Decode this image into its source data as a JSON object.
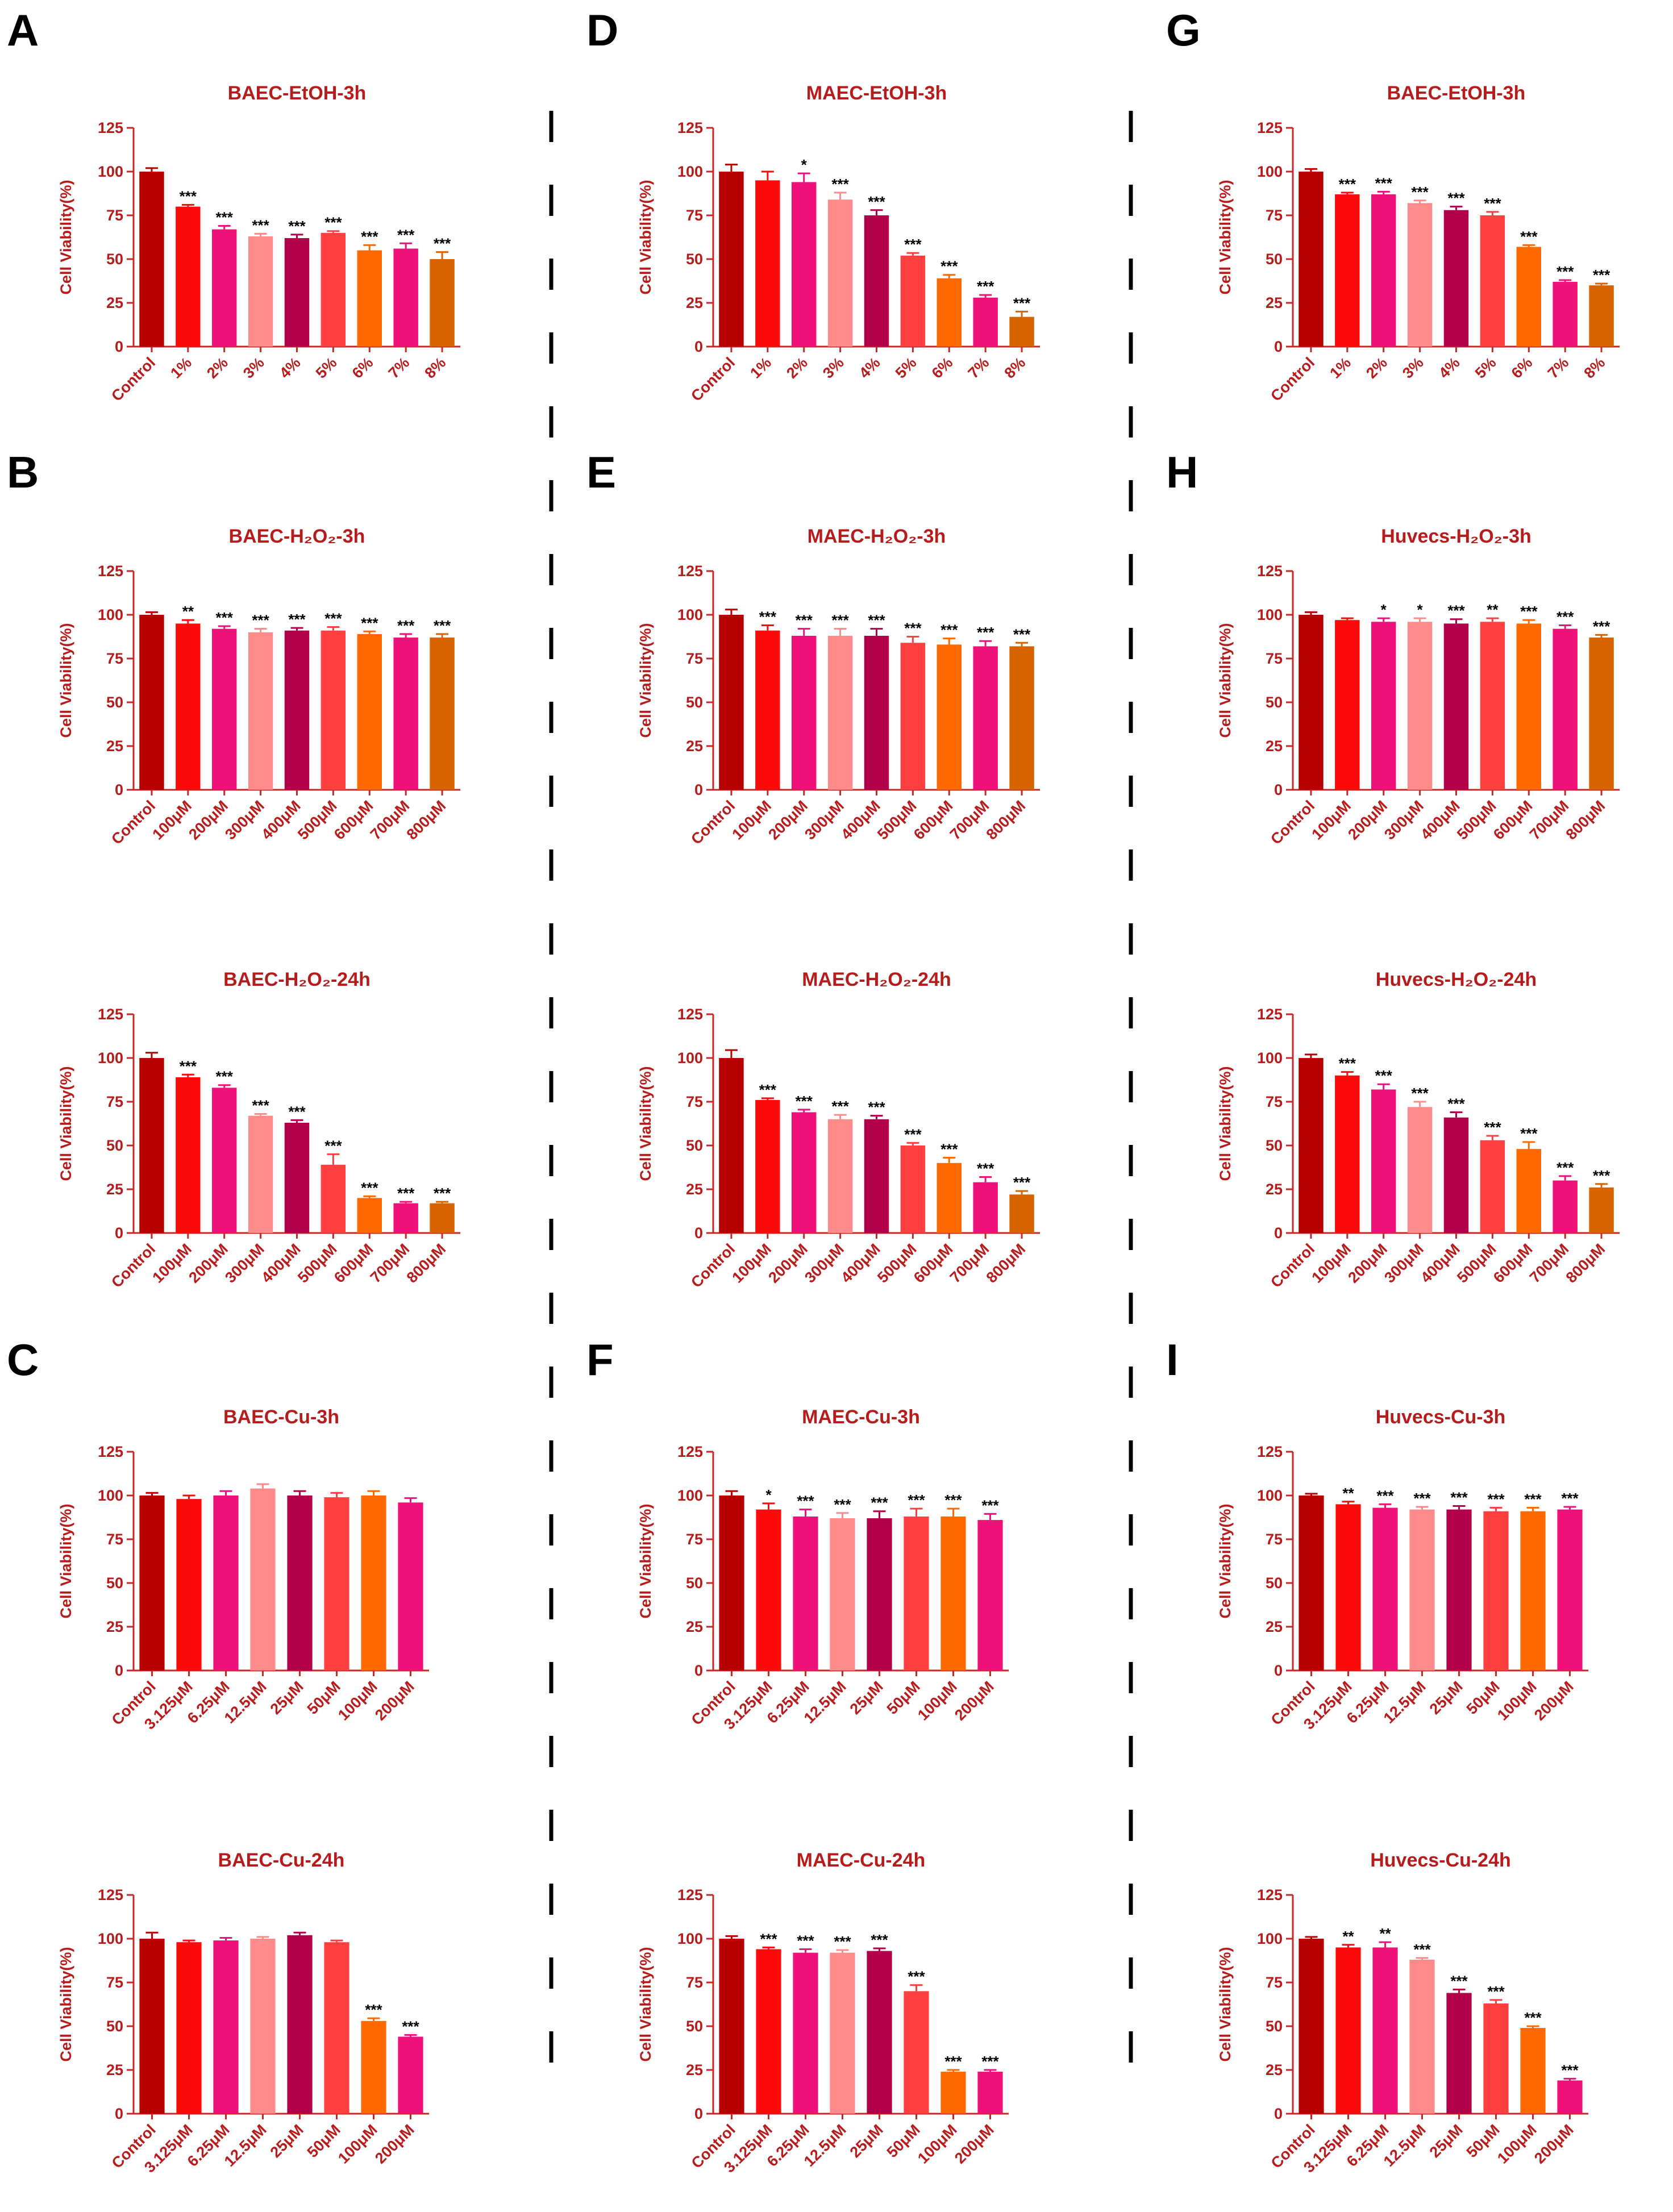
{
  "colors": {
    "text": "#B71C1C",
    "axis": "#C62828",
    "divider": "#000000",
    "bars": [
      "#B80000",
      "#FF0A0A",
      "#F0107A",
      "#FF8A8A",
      "#B3004B",
      "#FF4040",
      "#FF6A00",
      "#F0107A",
      "#D86400"
    ]
  },
  "panel_letters": [
    "A",
    "B",
    "C",
    "D",
    "E",
    "F",
    "G",
    "H",
    "I"
  ],
  "chart_data": [
    {
      "title": "BAEC-EtOH-3h",
      "type": "bar",
      "ylabel": "Cell Viability(%)",
      "ylim": [
        0,
        125
      ],
      "yticks": [
        0,
        25,
        50,
        75,
        100,
        125
      ],
      "categories": [
        "Control",
        "1%",
        "2%",
        "3%",
        "4%",
        "5%",
        "6%",
        "7%",
        "8%"
      ],
      "values": [
        100,
        80,
        67,
        63,
        62,
        65,
        55,
        56,
        50
      ],
      "errors": [
        2,
        1,
        2,
        1.5,
        2,
        1,
        3,
        3,
        4
      ],
      "significance": [
        "",
        "***",
        "***",
        "***",
        "***",
        "***",
        "***",
        "***",
        "***"
      ]
    },
    {
      "title": "BAEC-H₂O₂-3h",
      "type": "bar",
      "ylabel": "Cell Viability(%)",
      "ylim": [
        0,
        125
      ],
      "yticks": [
        0,
        25,
        50,
        75,
        100,
        125
      ],
      "categories": [
        "Control",
        "100μM",
        "200μM",
        "300μM",
        "400μM",
        "500μM",
        "600μM",
        "700μM",
        "800μM"
      ],
      "values": [
        100,
        95,
        92,
        90,
        91,
        91,
        89,
        87,
        87
      ],
      "errors": [
        1.5,
        2,
        1.5,
        2,
        1.5,
        2,
        1.5,
        2,
        2
      ],
      "significance": [
        "",
        "**",
        "***",
        "***",
        "***",
        "***",
        "***",
        "***",
        "***"
      ]
    },
    {
      "title": "BAEC-H₂O₂-24h",
      "type": "bar",
      "ylabel": "Cell Viability(%)",
      "ylim": [
        0,
        125
      ],
      "yticks": [
        0,
        25,
        50,
        75,
        100,
        125
      ],
      "categories": [
        "Control",
        "100μM",
        "200μM",
        "300μM",
        "400μM",
        "500μM",
        "600μM",
        "700μM",
        "800μM"
      ],
      "values": [
        100,
        89,
        83,
        67,
        63,
        39,
        20,
        17,
        17
      ],
      "errors": [
        3,
        1.5,
        1.5,
        1,
        1.5,
        6,
        1,
        0.8,
        0.8
      ],
      "significance": [
        "",
        "***",
        "***",
        "***",
        "***",
        "***",
        "***",
        "***",
        "***"
      ]
    },
    {
      "title": "BAEC-Cu-3h",
      "type": "bar",
      "ylabel": "Cell Viability(%)",
      "ylim": [
        0,
        125
      ],
      "yticks": [
        0,
        25,
        50,
        75,
        100,
        125
      ],
      "categories": [
        "Control",
        "3.125μM",
        "6.25μM",
        "12.5μM",
        "25μM",
        "50μM",
        "100μM",
        "200μM"
      ],
      "values": [
        100,
        98,
        100,
        104,
        100,
        99,
        100,
        96
      ],
      "errors": [
        1.5,
        2,
        2.5,
        2.5,
        2.5,
        2.5,
        2.5,
        2.5
      ],
      "significance": [
        "",
        "",
        "",
        "",
        "",
        "",
        "",
        ""
      ]
    },
    {
      "title": "BAEC-Cu-24h",
      "type": "bar",
      "ylabel": "Cell Viability(%)",
      "ylim": [
        0,
        125
      ],
      "yticks": [
        0,
        25,
        50,
        75,
        100,
        125
      ],
      "categories": [
        "Control",
        "3.125μM",
        "6.25μM",
        "12.5μM",
        "25μM",
        "50μM",
        "100μM",
        "200μM"
      ],
      "values": [
        100,
        98,
        99,
        100,
        102,
        98,
        53,
        44
      ],
      "errors": [
        3.5,
        1,
        1.5,
        1,
        1.5,
        1,
        1.5,
        1
      ],
      "significance": [
        "",
        "",
        "",
        "",
        "",
        "",
        "***",
        "***"
      ]
    },
    {
      "title": "MAEC-EtOH-3h",
      "type": "bar",
      "ylabel": "Cell Viability(%)",
      "ylim": [
        0,
        125
      ],
      "yticks": [
        0,
        25,
        50,
        75,
        100,
        125
      ],
      "categories": [
        "Control",
        "1%",
        "2%",
        "3%",
        "4%",
        "5%",
        "6%",
        "7%",
        "8%"
      ],
      "values": [
        100,
        95,
        94,
        84,
        75,
        52,
        39,
        28,
        17
      ],
      "errors": [
        4,
        5,
        5,
        4,
        3,
        1.5,
        2,
        1.5,
        3
      ],
      "significance": [
        "",
        "",
        "*",
        "***",
        "***",
        "***",
        "***",
        "***",
        "***"
      ]
    },
    {
      "title": "MAEC-H₂O₂-3h",
      "type": "bar",
      "ylabel": "Cell Viability(%)",
      "ylim": [
        0,
        125
      ],
      "yticks": [
        0,
        25,
        50,
        75,
        100,
        125
      ],
      "categories": [
        "Control",
        "100μM",
        "200μM",
        "300μM",
        "400μM",
        "500μM",
        "600μM",
        "700μM",
        "800μM"
      ],
      "values": [
        100,
        91,
        88,
        88,
        88,
        84,
        83,
        82,
        82
      ],
      "errors": [
        3,
        3,
        4,
        4,
        4,
        3.5,
        3.5,
        3,
        2
      ],
      "significance": [
        "",
        "***",
        "***",
        "***",
        "***",
        "***",
        "***",
        "***",
        "***"
      ]
    },
    {
      "title": "MAEC-H₂O₂-24h",
      "type": "bar",
      "ylabel": "Cell Viability(%)",
      "ylim": [
        0,
        125
      ],
      "yticks": [
        0,
        25,
        50,
        75,
        100,
        125
      ],
      "categories": [
        "Control",
        "100μM",
        "200μM",
        "300μM",
        "400μM",
        "500μM",
        "600μM",
        "700μM",
        "800μM"
      ],
      "values": [
        100,
        76,
        69,
        65,
        65,
        50,
        40,
        29,
        22
      ],
      "errors": [
        4.5,
        1,
        1.5,
        2.5,
        2,
        1.5,
        3,
        3,
        2
      ],
      "significance": [
        "",
        "***",
        "***",
        "***",
        "***",
        "***",
        "***",
        "***",
        "***"
      ]
    },
    {
      "title": "MAEC-Cu-3h",
      "type": "bar",
      "ylabel": "Cell Viability(%)",
      "ylim": [
        0,
        125
      ],
      "yticks": [
        0,
        25,
        50,
        75,
        100,
        125
      ],
      "categories": [
        "Control",
        "3.125μM",
        "6.25μM",
        "12.5μM",
        "25μM",
        "50μM",
        "100μM",
        "200μM"
      ],
      "values": [
        100,
        92,
        88,
        87,
        87,
        88,
        88,
        86
      ],
      "errors": [
        2.5,
        3.5,
        4,
        3,
        4,
        4.5,
        4.5,
        3.5
      ],
      "significance": [
        "",
        "*",
        "***",
        "***",
        "***",
        "***",
        "***",
        "***"
      ]
    },
    {
      "title": "MAEC-Cu-24h",
      "type": "bar",
      "ylabel": "Cell Viability(%)",
      "ylim": [
        0,
        125
      ],
      "yticks": [
        0,
        25,
        50,
        75,
        100,
        125
      ],
      "categories": [
        "Control",
        "3.125μM",
        "6.25μM",
        "12.5μM",
        "25μM",
        "50μM",
        "100μM",
        "200μM"
      ],
      "values": [
        100,
        94,
        92,
        92,
        93,
        70,
        24,
        24
      ],
      "errors": [
        1.5,
        1,
        2,
        1.5,
        1.5,
        3.5,
        1,
        1
      ],
      "significance": [
        "",
        "***",
        "***",
        "***",
        "***",
        "***",
        "***",
        "***"
      ]
    },
    {
      "title": "BAEC-EtOH-3h",
      "type": "bar",
      "ylabel": "Cell Viability(%)",
      "ylim": [
        0,
        125
      ],
      "yticks": [
        0,
        25,
        50,
        75,
        100,
        125
      ],
      "categories": [
        "Control",
        "1%",
        "2%",
        "3%",
        "4%",
        "5%",
        "6%",
        "7%",
        "8%"
      ],
      "values": [
        100,
        87,
        87,
        82,
        78,
        75,
        57,
        37,
        35
      ],
      "errors": [
        1.5,
        1,
        1.5,
        1.5,
        2,
        2,
        1,
        1,
        1
      ],
      "significance": [
        "",
        "***",
        "***",
        "***",
        "***",
        "***",
        "***",
        "***",
        "***"
      ]
    },
    {
      "title": "Huvecs-H₂O₂-3h",
      "type": "bar",
      "ylabel": "Cell Viability(%)",
      "ylim": [
        0,
        125
      ],
      "yticks": [
        0,
        25,
        50,
        75,
        100,
        125
      ],
      "categories": [
        "Control",
        "100μM",
        "200μM",
        "300μM",
        "400μM",
        "500μM",
        "600μM",
        "700μM",
        "800μM"
      ],
      "values": [
        100,
        97,
        96,
        96,
        95,
        96,
        95,
        92,
        87
      ],
      "errors": [
        1.5,
        1,
        2,
        2,
        2.5,
        2,
        2,
        2,
        1.5
      ],
      "significance": [
        "",
        "",
        "*",
        "*",
        "***",
        "**",
        "***",
        "***",
        "***"
      ]
    },
    {
      "title": "Huvecs-H₂O₂-24h",
      "type": "bar",
      "ylabel": "Cell Viability(%)",
      "ylim": [
        0,
        125
      ],
      "yticks": [
        0,
        25,
        50,
        75,
        100,
        125
      ],
      "categories": [
        "Control",
        "100μM",
        "200μM",
        "300μM",
        "400μM",
        "500μM",
        "600μM",
        "700μM",
        "800μM"
      ],
      "values": [
        100,
        90,
        82,
        72,
        66,
        53,
        48,
        30,
        26
      ],
      "errors": [
        2,
        2,
        3,
        3,
        3,
        2.5,
        4,
        2.5,
        2
      ],
      "significance": [
        "",
        "***",
        "***",
        "***",
        "***",
        "***",
        "***",
        "***",
        "***"
      ]
    },
    {
      "title": "Huvecs-Cu-3h",
      "type": "bar",
      "ylabel": "Cell Viability(%)",
      "ylim": [
        0,
        125
      ],
      "yticks": [
        0,
        25,
        50,
        75,
        100,
        125
      ],
      "categories": [
        "Control",
        "3.125μM",
        "6.25μM",
        "12.5μM",
        "25μM",
        "50μM",
        "100μM",
        "200μM"
      ],
      "values": [
        100,
        95,
        93,
        92,
        92,
        91,
        91,
        92
      ],
      "errors": [
        1,
        1.5,
        2,
        1.5,
        2,
        2,
        2,
        1.5
      ],
      "significance": [
        "",
        "**",
        "***",
        "***",
        "***",
        "***",
        "***",
        "***"
      ]
    },
    {
      "title": "Huvecs-Cu-24h",
      "type": "bar",
      "ylabel": "Cell Viability(%)",
      "ylim": [
        0,
        125
      ],
      "yticks": [
        0,
        25,
        50,
        75,
        100,
        125
      ],
      "categories": [
        "Control",
        "3.125μM",
        "6.25μM",
        "12.5μM",
        "25μM",
        "50μM",
        "100μM",
        "200μM"
      ],
      "values": [
        100,
        95,
        95,
        88,
        69,
        63,
        49,
        19
      ],
      "errors": [
        1,
        1.5,
        3,
        1,
        2,
        2,
        1,
        1
      ],
      "significance": [
        "",
        "**",
        "**",
        "***",
        "***",
        "***",
        "***",
        "***"
      ]
    }
  ]
}
